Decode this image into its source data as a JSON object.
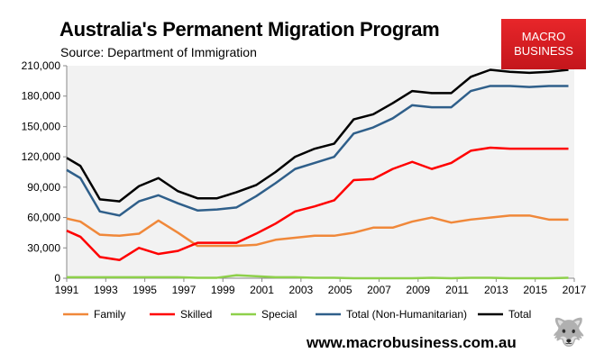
{
  "chart_data": {
    "type": "line",
    "title": "Australia's Permanent Migration Program",
    "subtitle": "Source: Department of Immigration",
    "xlabel": "",
    "ylabel": "",
    "xlim": [
      1991,
      2017
    ],
    "ylim": [
      0,
      210000
    ],
    "xticks": [
      1991,
      1993,
      1995,
      1997,
      1999,
      2001,
      2003,
      2005,
      2007,
      2009,
      2011,
      2013,
      2015,
      2017
    ],
    "yticks": [
      0,
      30000,
      60000,
      90000,
      120000,
      150000,
      180000,
      210000
    ],
    "ytick_labels": [
      "0",
      "30,000",
      "60,000",
      "90,000",
      "120,000",
      "150,000",
      "180,000",
      "210,000"
    ],
    "legend_position": "bottom",
    "x": [
      1991,
      1991.7,
      1992.7,
      1993.7,
      1994.7,
      1995.7,
      1996.7,
      1997.7,
      1998.7,
      1999.7,
      2000.7,
      2001.7,
      2002.7,
      2003.7,
      2004.7,
      2005.7,
      2006.7,
      2007.7,
      2008.7,
      2009.7,
      2010.7,
      2011.7,
      2012.7,
      2013.7,
      2014.7,
      2015.7,
      2016.7
    ],
    "series": [
      {
        "name": "Family",
        "color": "#f0883a",
        "values": [
          59000,
          56000,
          43000,
          42000,
          44000,
          57000,
          45000,
          32000,
          32000,
          32000,
          33000,
          38000,
          40000,
          42000,
          42000,
          45000,
          50000,
          50000,
          56000,
          60000,
          55000,
          58000,
          60000,
          62000,
          62000,
          58000,
          58000
        ]
      },
      {
        "name": "Skilled",
        "color": "#ff0000",
        "values": [
          47000,
          41000,
          21000,
          18000,
          30000,
          24000,
          27000,
          35000,
          35000,
          35000,
          44000,
          54000,
          66000,
          71000,
          77000,
          97000,
          98000,
          108000,
          115000,
          108000,
          114000,
          126000,
          129000,
          128000,
          128000,
          128000,
          128000
        ]
      },
      {
        "name": "Special",
        "color": "#8ed04b",
        "values": [
          1000,
          1000,
          1000,
          1000,
          1000,
          1000,
          1000,
          500,
          500,
          3000,
          2000,
          1000,
          1000,
          500,
          500,
          0,
          0,
          0,
          0,
          500,
          0,
          500,
          500,
          0,
          0,
          0,
          500
        ]
      },
      {
        "name": "Total (Non-Humanitarian)",
        "color": "#2f5f8a",
        "values": [
          107000,
          99000,
          66000,
          62000,
          76000,
          82000,
          74000,
          67000,
          68000,
          70000,
          81000,
          94000,
          108000,
          114000,
          120000,
          143000,
          149000,
          158000,
          171000,
          169000,
          169000,
          185000,
          190000,
          190000,
          189000,
          190000,
          190000
        ]
      },
      {
        "name": "Total",
        "color": "#000000",
        "values": [
          119000,
          111000,
          78000,
          76000,
          91000,
          99000,
          86000,
          79000,
          79000,
          85000,
          92000,
          105000,
          120000,
          128000,
          133000,
          157000,
          162000,
          173000,
          185000,
          183000,
          183000,
          199000,
          206000,
          204000,
          203000,
          204000,
          206000
        ]
      }
    ]
  },
  "logo": {
    "line1": "MACRO",
    "line2": "BUSINESS"
  },
  "footer": {
    "url": "www.macrobusiness.com.au"
  }
}
